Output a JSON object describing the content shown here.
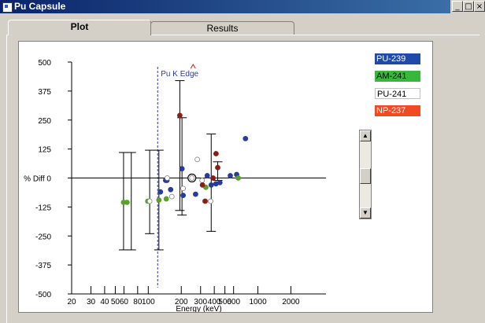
{
  "window": {
    "title": "Pu Capsule"
  },
  "title_buttons": {
    "minimize": "_",
    "maximize": "□",
    "close": "×"
  },
  "tabs": [
    {
      "label": "Plot"
    },
    {
      "label": "Results"
    }
  ],
  "colors": {
    "pu239": "#1f4aa8",
    "am241": "#38b83b",
    "pu241": "#ffffff",
    "np237": "#f04a23",
    "data_blue": "#2a3c9a",
    "data_green": "#5aa02a",
    "data_red": "#8c1c14"
  },
  "legend": [
    {
      "label": "PU-239",
      "color": "#1f4aa8",
      "text_color": "#ffffff"
    },
    {
      "label": "AM-241",
      "color": "#38b83b",
      "text_color": "#000000"
    },
    {
      "label": "PU-241",
      "color": "#ffffff",
      "text_color": "#000000"
    },
    {
      "label": "NP-237",
      "color": "#f04a23",
      "text_color": "#ffffff"
    }
  ],
  "scrollbar": {
    "up_icon": "up-arrow-icon",
    "down_icon": "down-arrow-icon"
  },
  "chart_data": {
    "type": "scatter",
    "xlabel": "Energy (keV)",
    "ylabel": "% Diff",
    "xscale": "log",
    "xlim": [
      20,
      3000
    ],
    "ylim": [
      -500,
      500
    ],
    "yticks": [
      500,
      375,
      250,
      125,
      0,
      -125,
      -250,
      -375,
      -500
    ],
    "ytick_labels": [
      "500",
      "375",
      "250",
      "125",
      "% Diff  0",
      "-125",
      "-250",
      "-375",
      "-500"
    ],
    "xticks": [
      20,
      30,
      40,
      50,
      60,
      80,
      100,
      200,
      300,
      400,
      500,
      600,
      1000,
      2000
    ],
    "xtick_labels": [
      "20",
      "30",
      "40",
      "50",
      "60",
      "80",
      "100",
      "200",
      "300",
      "400",
      "500",
      "600",
      "1000",
      "2000"
    ],
    "annotation": {
      "text": "Pu K Edge",
      "x": 121.8
    },
    "zero_line": true,
    "series": [
      {
        "name": "PU-239",
        "color": "#2a3c9a",
        "points": [
          {
            "x": 129,
            "y": -60
          },
          {
            "x": 144,
            "y": -10
          },
          {
            "x": 148,
            "y": -10
          },
          {
            "x": 160,
            "y": -50
          },
          {
            "x": 203,
            "y": 40
          },
          {
            "x": 208,
            "y": -75
          },
          {
            "x": 270,
            "y": -70
          },
          {
            "x": 345,
            "y": 10
          },
          {
            "x": 375,
            "y": -30
          },
          {
            "x": 414,
            "y": -25
          },
          {
            "x": 450,
            "y": -20
          },
          {
            "x": 560,
            "y": 10
          },
          {
            "x": 640,
            "y": 15
          },
          {
            "x": 770,
            "y": 170
          }
        ]
      },
      {
        "name": "AM-241",
        "color": "#5aa02a",
        "points": [
          {
            "x": 59.5,
            "y": -105
          },
          {
            "x": 64,
            "y": -105
          },
          {
            "x": 99,
            "y": -100
          },
          {
            "x": 125,
            "y": -95
          },
          {
            "x": 146,
            "y": -90
          },
          {
            "x": 335,
            "y": -40
          },
          {
            "x": 662,
            "y": 0
          }
        ]
      },
      {
        "name": "PU-241",
        "color": "#ffffff",
        "points": [
          {
            "x": 103,
            "y": -100
          },
          {
            "x": 149,
            "y": 0
          },
          {
            "x": 164,
            "y": -80
          },
          {
            "x": 208,
            "y": -45
          },
          {
            "x": 250,
            "y": 0
          },
          {
            "x": 280,
            "y": 80
          },
          {
            "x": 310,
            "y": -10
          },
          {
            "x": 370,
            "y": -100
          }
        ]
      },
      {
        "name": "NP-237",
        "color": "#8c1c14",
        "points": [
          {
            "x": 194,
            "y": 270
          },
          {
            "x": 312,
            "y": -30
          },
          {
            "x": 330,
            "y": -100
          },
          {
            "x": 390,
            "y": 0
          },
          {
            "x": 415,
            "y": 105
          },
          {
            "x": 430,
            "y": 45
          }
        ]
      }
    ],
    "error_bars": [
      {
        "x": 59.5,
        "y": -105,
        "lo": -310,
        "hi": 110
      },
      {
        "x": 70,
        "y": -105,
        "lo": -310,
        "hi": 110
      },
      {
        "x": 103,
        "y": -100,
        "lo": -240,
        "hi": 120
      },
      {
        "x": 125,
        "y": -95,
        "lo": -310,
        "hi": 120
      },
      {
        "x": 194,
        "y": 270,
        "lo": -140,
        "hi": 420
      },
      {
        "x": 203,
        "y": 40,
        "lo": -160,
        "hi": 260
      },
      {
        "x": 375,
        "y": -30,
        "lo": -230,
        "hi": 190
      },
      {
        "x": 430,
        "y": 45,
        "lo": -10,
        "hi": 70
      }
    ]
  }
}
